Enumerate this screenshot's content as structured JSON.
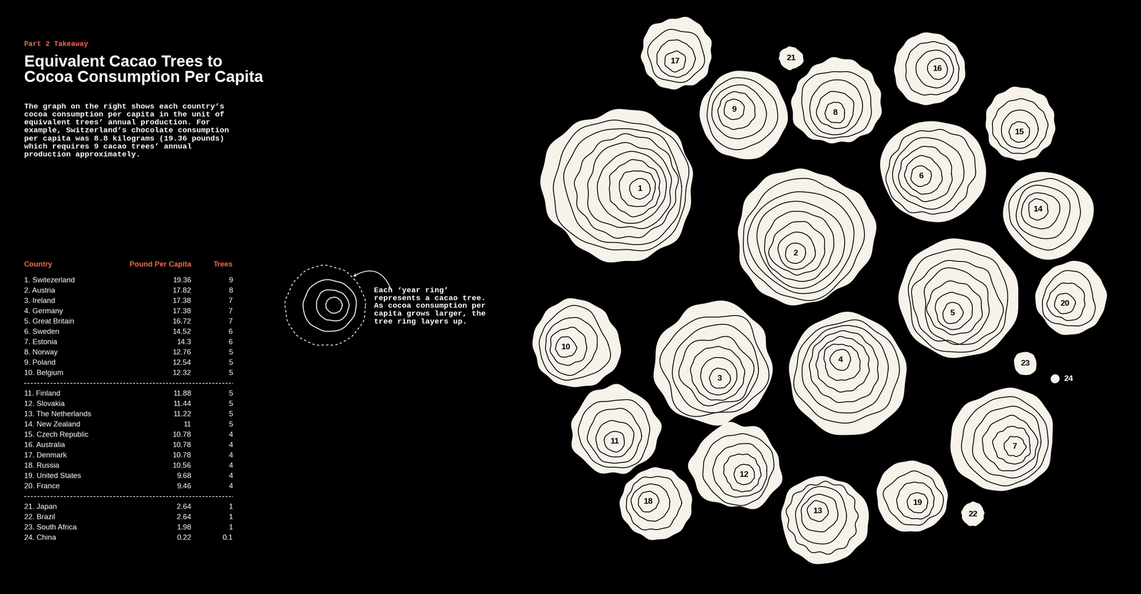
{
  "kicker": "Part 2 Takeaway",
  "title": "Equivalent Cacao Trees to\nCocoa Consumption Per Capita",
  "description": "The graph on the right shows each country’s\ncocoa consumption per capita in the unit of\nequivalent trees’ annual production. For\nexample, Switzerland’s chocolate consumption\nper capita was 8.8 kilograms (19.36 pounds)\nwhich requires 9 cacao trees’ annual\nproduction approximately.",
  "note": "Each ‘year ring’\nrepresents a cacao tree.\nAs cocoa consumption per\ncapita grows larger, the\ntree ring layers up.",
  "table": {
    "columns": [
      "Country",
      "Pound Per Capita",
      "Trees"
    ],
    "groups": [
      [
        [
          "1. Switezerland",
          19.36,
          9
        ],
        [
          "2. Austria",
          17.82,
          8
        ],
        [
          "3. Ireland",
          17.38,
          7
        ],
        [
          "4. Germany",
          17.38,
          7
        ],
        [
          "5. Great Britain",
          16.72,
          7
        ],
        [
          "6. Sweden",
          14.52,
          6
        ],
        [
          "7. Estonia",
          14.3,
          6
        ],
        [
          "8. Norway",
          12.76,
          5
        ],
        [
          "9. Poland",
          12.54,
          5
        ],
        [
          "10. Belgium",
          12.32,
          5
        ]
      ],
      [
        [
          "11. Finland",
          11.88,
          5
        ],
        [
          "12. Slovakia",
          11.44,
          5
        ],
        [
          "13. The Netherlands",
          11.22,
          5
        ],
        [
          "14. New Zealand",
          11,
          5
        ],
        [
          "15. Czech Republic",
          10.78,
          4
        ],
        [
          "16. Australia",
          10.78,
          4
        ],
        [
          "17. Denmark",
          10.78,
          4
        ],
        [
          "18. Russia",
          10.56,
          4
        ],
        [
          "19. United States",
          9.68,
          4
        ],
        [
          "20. France",
          9.46,
          4
        ]
      ],
      [
        [
          "21. Japan",
          2.64,
          1
        ],
        [
          "22. Brazil",
          2.64,
          1
        ],
        [
          "23. South Africa",
          1.98,
          1
        ],
        [
          "24. China",
          0.22,
          0.1
        ]
      ]
    ]
  },
  "chart_data": {
    "type": "tree_rings",
    "categories": [
      "1",
      "2",
      "3",
      "4",
      "5",
      "6",
      "7",
      "8",
      "9",
      "10",
      "11",
      "12",
      "13",
      "14",
      "15",
      "16",
      "17",
      "18",
      "19",
      "20",
      "21",
      "22",
      "23",
      "24"
    ],
    "values": [
      9,
      8,
      7,
      7,
      7,
      6,
      6,
      5,
      5,
      5,
      5,
      5,
      5,
      5,
      4,
      4,
      4,
      4,
      4,
      4,
      1,
      1,
      1,
      0.1
    ]
  }
}
